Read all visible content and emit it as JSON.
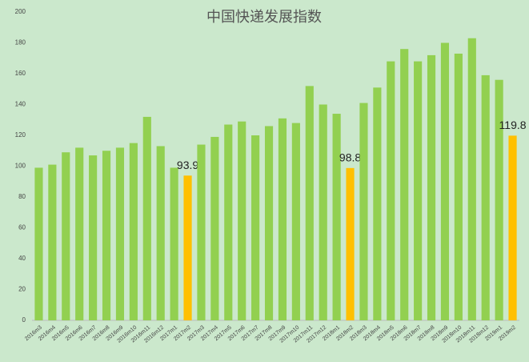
{
  "chart_data": {
    "type": "bar",
    "title": "中国快递发展指数",
    "categories": [
      "2016m3",
      "2016m4",
      "2016m5",
      "2016m6",
      "2016m7",
      "2016m8",
      "2016m9",
      "2016m10",
      "2016m11",
      "2016m12",
      "2017m1",
      "2017m2",
      "2017m3",
      "2017m4",
      "2017m5",
      "2017m6",
      "2017m7",
      "2017m8",
      "2017m9",
      "2017m10",
      "2017m11",
      "2017m12",
      "2018m1",
      "2018m2",
      "2018m3",
      "2018m4",
      "2018m5",
      "2018m6",
      "2018m7",
      "2018m8",
      "2018m9",
      "2018m10",
      "2018m11",
      "2018m12",
      "2019m1",
      "2019m2"
    ],
    "values": [
      99,
      101,
      109,
      112,
      107,
      110,
      112,
      115,
      132,
      113,
      99,
      93.9,
      114,
      119,
      127,
      129,
      120,
      126,
      131,
      128,
      152,
      140,
      134,
      98.8,
      141,
      151,
      168,
      176,
      168,
      172,
      180,
      173,
      183,
      159,
      156,
      119.8
    ],
    "color": "#92d050",
    "colors": [
      "#92d050",
      "#92d050",
      "#92d050",
      "#92d050",
      "#92d050",
      "#92d050",
      "#92d050",
      "#92d050",
      "#92d050",
      "#92d050",
      "#92d050",
      "#ffc000",
      "#92d050",
      "#92d050",
      "#92d050",
      "#92d050",
      "#92d050",
      "#92d050",
      "#92d050",
      "#92d050",
      "#92d050",
      "#92d050",
      "#92d050",
      "#ffc000",
      "#92d050",
      "#92d050",
      "#92d050",
      "#92d050",
      "#92d050",
      "#92d050",
      "#92d050",
      "#92d050",
      "#92d050",
      "#92d050",
      "#92d050",
      "#ffc000"
    ],
    "ylim": [
      0,
      200
    ],
    "yticks": [
      0,
      20,
      40,
      60,
      80,
      100,
      120,
      140,
      160,
      180,
      200
    ],
    "grid": false
  }
}
